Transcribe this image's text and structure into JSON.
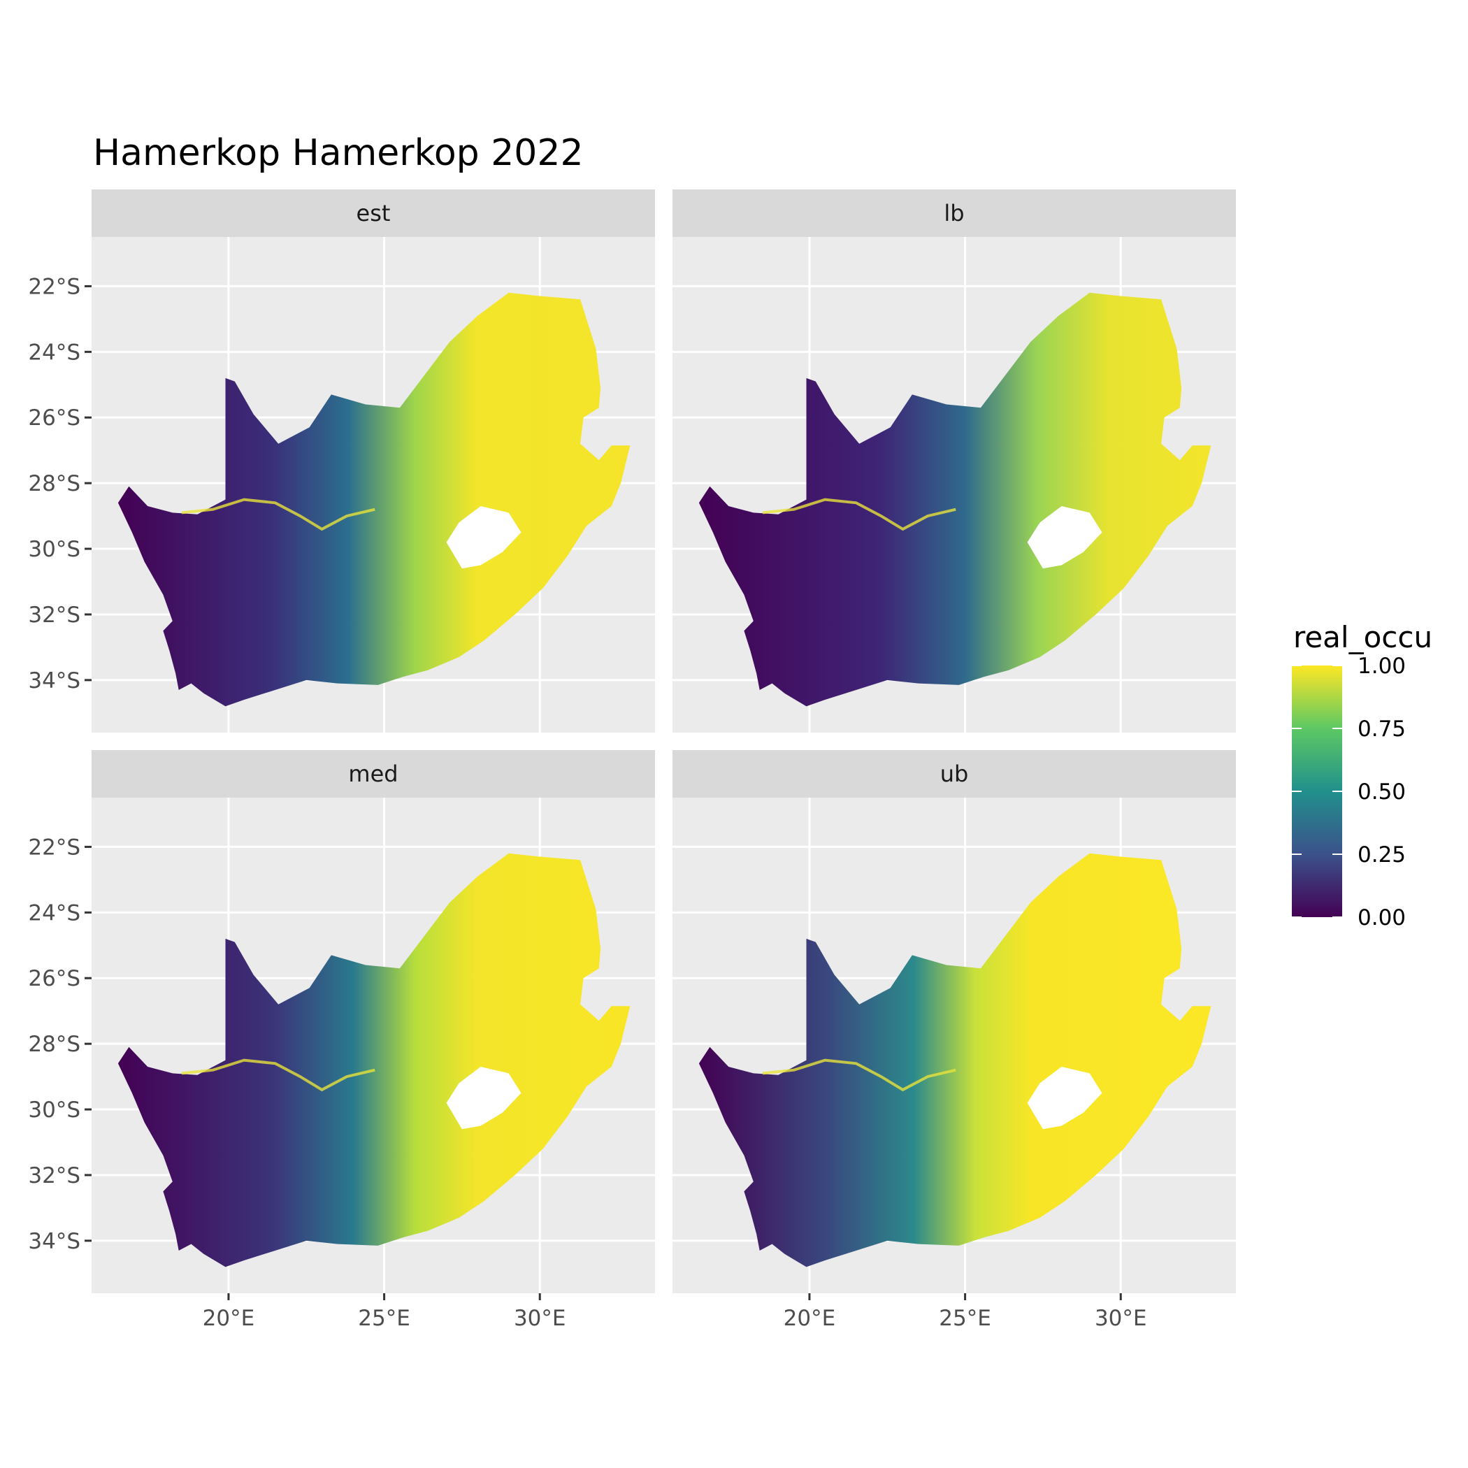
{
  "title": "Hamerkop Hamerkop 2022",
  "panels": [
    {
      "label": "est"
    },
    {
      "label": "lb"
    },
    {
      "label": "med"
    },
    {
      "label": "ub"
    }
  ],
  "y_ticks": [
    {
      "value": -22,
      "label": "22°S"
    },
    {
      "value": -24,
      "label": "24°S"
    },
    {
      "value": -26,
      "label": "26°S"
    },
    {
      "value": -28,
      "label": "28°S"
    },
    {
      "value": -30,
      "label": "30°S"
    },
    {
      "value": -32,
      "label": "32°S"
    },
    {
      "value": -34,
      "label": "34°S"
    }
  ],
  "x_ticks": [
    {
      "value": 20,
      "label": "20°E"
    },
    {
      "value": 25,
      "label": "25°E"
    },
    {
      "value": 30,
      "label": "30°E"
    }
  ],
  "legend": {
    "title": "real_occu",
    "ticks": [
      {
        "value": 1.0,
        "label": "1.00"
      },
      {
        "value": 0.75,
        "label": "0.75"
      },
      {
        "value": 0.5,
        "label": "0.50"
      },
      {
        "value": 0.25,
        "label": "0.25"
      },
      {
        "value": 0.0,
        "label": "0.00"
      }
    ],
    "colors": [
      "#440154",
      "#3b528b",
      "#21908c",
      "#5dc863",
      "#fde725"
    ]
  },
  "colors": {
    "panel_bg": "#ebebeb",
    "strip_bg": "#d9d9d9",
    "grid": "#ffffff",
    "lesotho_hole": "#ffffff"
  }
}
